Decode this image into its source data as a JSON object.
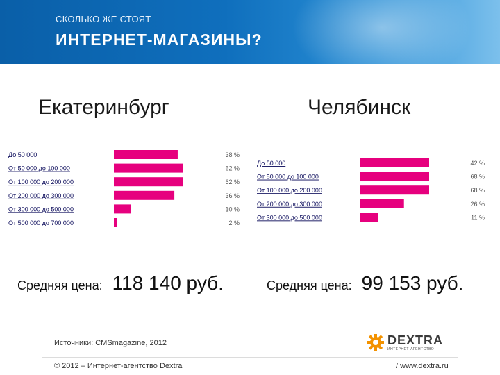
{
  "header": {
    "subtitle": "СКОЛЬКО ЖЕ СТОЯТ",
    "title": "ИНТЕРНЕТ-МАГАЗИНЫ?"
  },
  "left": {
    "city": "Екатеринбург",
    "avg_label": "Средняя цена:",
    "avg_value": "118 140 руб."
  },
  "right": {
    "city": "Челябинск",
    "avg_label": "Средняя цена:",
    "avg_value": "99 153 руб."
  },
  "chart_data": [
    {
      "type": "bar",
      "orientation": "horizontal",
      "title": "Екатеринбург",
      "categories": [
        "До 50 000",
        "От 50 000 до 100 000",
        "От 100 000 до 200 000",
        "От 200 000 до 300 000",
        "От 300 000 до 500 000",
        "От 500 000 до 700 000"
      ],
      "values": [
        38,
        62,
        62,
        36,
        10,
        2
      ],
      "value_labels": [
        "38 %",
        "62 %",
        "62 %",
        "36 %",
        "10 %",
        "2 %"
      ],
      "unit": "%",
      "xlim": [
        0,
        100
      ],
      "grid": false,
      "color": "#e6007e"
    },
    {
      "type": "bar",
      "orientation": "horizontal",
      "title": "Челябинск",
      "categories": [
        "До 50 000",
        "От 50 000 до 100 000",
        "От 100 000 до 200 000",
        "От 200 000 до 300 000",
        "От 300 000 до 500 000"
      ],
      "values": [
        42,
        68,
        68,
        26,
        11
      ],
      "value_labels": [
        "42 %",
        "68 %",
        "68 %",
        "26 %",
        "11 %"
      ],
      "unit": "%",
      "xlim": [
        0,
        100
      ],
      "grid": false,
      "color": "#e6007e"
    }
  ],
  "footer": {
    "source": "Источники: CMSmagazine, 2012",
    "copyright": "© 2012 – Интернет-агентство Dextra",
    "site": "/  www.dextra.ru",
    "logo_word": "DEXTRA",
    "logo_tagline": "ИНТЕРНЕТ-АГЕНТСТВО",
    "logo_icon": "gear-icon"
  },
  "colors": {
    "accent": "#e6007e",
    "header": "#0f6fbd",
    "logo_orange": "#f39200"
  }
}
